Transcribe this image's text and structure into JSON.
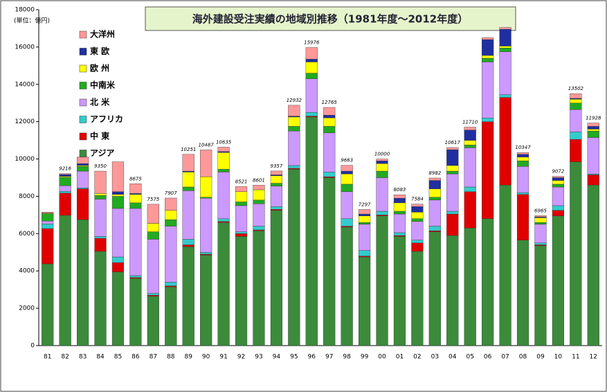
{
  "chart_data": {
    "type": "stacked_bar",
    "title": "海外建設受注実績の地域別推移（1981年度～2012年度）",
    "y_label": "(単位：億円)",
    "categories": [
      "81",
      "82",
      "83",
      "84",
      "85",
      "86",
      "87",
      "88",
      "89",
      "90",
      "91",
      "92",
      "93",
      "94",
      "95",
      "96",
      "97",
      "98",
      "99",
      "00",
      "01",
      "02",
      "03",
      "04",
      "05",
      "06",
      "07",
      "08",
      "09",
      "10",
      "11",
      "12"
    ],
    "ylim": [
      0,
      18000
    ],
    "yticks": [
      0,
      2000,
      4000,
      6000,
      8000,
      10000,
      12000,
      14000,
      16000,
      18000
    ],
    "totals": [
      null,
      9216,
      null,
      9350,
      null,
      8675,
      7575,
      7907,
      10251,
      10487,
      10635,
      8521,
      8601,
      9357,
      12932,
      15976,
      12765,
      9663,
      7297,
      10000,
      8083,
      7584,
      8982,
      10617,
      11710,
      null,
      null,
      10347,
      6965,
      9072,
      13502,
      11928
    ],
    "series": [
      {
        "name": "アジア",
        "color": "#3b8b3b",
        "values": [
          4380,
          6980,
          6750,
          5050,
          3950,
          3600,
          2650,
          3150,
          5300,
          4850,
          6600,
          5850,
          6150,
          7250,
          9450,
          12250,
          9000,
          6350,
          4750,
          6950,
          5850,
          5050,
          6100,
          5900,
          6300,
          6800,
          8600,
          5650,
          5350,
          6950,
          9850,
          8600
        ]
      },
      {
        "name": "中 東",
        "color": "#e00000",
        "values": [
          1890,
          1190,
          1650,
          700,
          500,
          50,
          50,
          50,
          100,
          50,
          50,
          150,
          50,
          50,
          50,
          50,
          50,
          50,
          50,
          50,
          50,
          450,
          50,
          1150,
          1950,
          5200,
          4700,
          2450,
          50,
          300,
          1200,
          550
        ]
      },
      {
        "name": "アフリカ",
        "color": "#33cccc",
        "values": [
          250,
          100,
          50,
          100,
          300,
          100,
          100,
          200,
          300,
          100,
          150,
          100,
          200,
          150,
          150,
          200,
          250,
          400,
          300,
          200,
          150,
          150,
          250,
          150,
          250,
          200,
          150,
          100,
          100,
          250,
          400,
          50
        ]
      },
      {
        "name": "北 米",
        "color": "#cc99ff",
        "values": [
          150,
          300,
          900,
          2000,
          2600,
          3600,
          2900,
          3000,
          2600,
          2900,
          2500,
          1400,
          1200,
          1100,
          1850,
          1800,
          2100,
          1450,
          1400,
          1800,
          1000,
          1000,
          1400,
          2000,
          2100,
          3000,
          2300,
          1400,
          1000,
          1000,
          1200,
          1950
        ]
      },
      {
        "name": "中南米",
        "color": "#22aa22",
        "values": [
          400,
          450,
          250,
          200,
          650,
          300,
          400,
          350,
          200,
          50,
          150,
          200,
          200,
          150,
          250,
          300,
          350,
          400,
          100,
          350,
          150,
          150,
          150,
          150,
          150,
          200,
          200,
          300,
          100,
          150,
          350,
          350
        ]
      },
      {
        "name": "欧 州",
        "color": "#ffff00",
        "values": [
          30,
          50,
          50,
          100,
          100,
          450,
          450,
          500,
          800,
          1100,
          900,
          550,
          550,
          400,
          500,
          600,
          450,
          550,
          350,
          400,
          450,
          350,
          450,
          300,
          250,
          150,
          100,
          200,
          250,
          200,
          200,
          100
        ]
      },
      {
        "name": "東 欧",
        "color": "#1f2f9f",
        "values": [
          0,
          100,
          100,
          0,
          150,
          50,
          0,
          0,
          50,
          0,
          50,
          0,
          0,
          50,
          50,
          150,
          150,
          150,
          100,
          150,
          250,
          300,
          450,
          850,
          550,
          850,
          900,
          150,
          50,
          150,
          50,
          150
        ]
      },
      {
        "name": "大洋州",
        "color": "#ff9999",
        "values": [
          50,
          46,
          350,
          1200,
          1600,
          525,
          1025,
          657,
          901,
          1437,
          235,
          271,
          251,
          207,
          582,
          626,
          415,
          313,
          247,
          100,
          183,
          134,
          132,
          117,
          160,
          100,
          100,
          97,
          65,
          72,
          252,
          178
        ]
      }
    ]
  }
}
